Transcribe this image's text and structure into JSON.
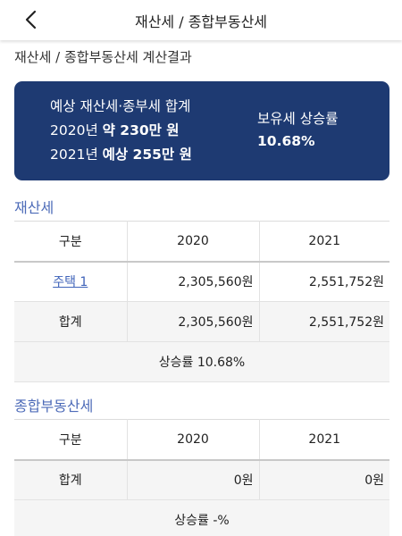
{
  "header": {
    "title": "재산세 / 종합부동산세"
  },
  "page_title": "재산세 / 종합부동산세 계산결과",
  "summary": {
    "label": "예상 재산세·종부세 합계",
    "year_2020_prefix": "2020년 ",
    "year_2020_value": "약 230만 원",
    "year_2021_prefix": "2021년 ",
    "year_2021_value": "예상 255만 원",
    "rate_label": "보유세 상승률",
    "rate_value": "10.68%"
  },
  "property_tax": {
    "section_title": "재산세",
    "columns": [
      "구분",
      "2020",
      "2021"
    ],
    "rows": [
      {
        "label": "주택 1",
        "v2020": "2,305,560원",
        "v2021": "2,551,752원"
      },
      {
        "label": "합계",
        "v2020": "2,305,560원",
        "v2021": "2,551,752원"
      }
    ],
    "footer": "상승률 10.68%"
  },
  "comprehensive_tax": {
    "section_title": "종합부동산세",
    "columns": [
      "구분",
      "2020",
      "2021"
    ],
    "rows": [
      {
        "label": "합계",
        "v2020": "0원",
        "v2021": "0원"
      }
    ],
    "footer": "상승률 -%"
  },
  "colors": {
    "card_bg": "#1e3a72",
    "accent": "#4d6bb8",
    "link": "#3f63b9"
  },
  "icons": {
    "back": "chevron-left-icon"
  }
}
